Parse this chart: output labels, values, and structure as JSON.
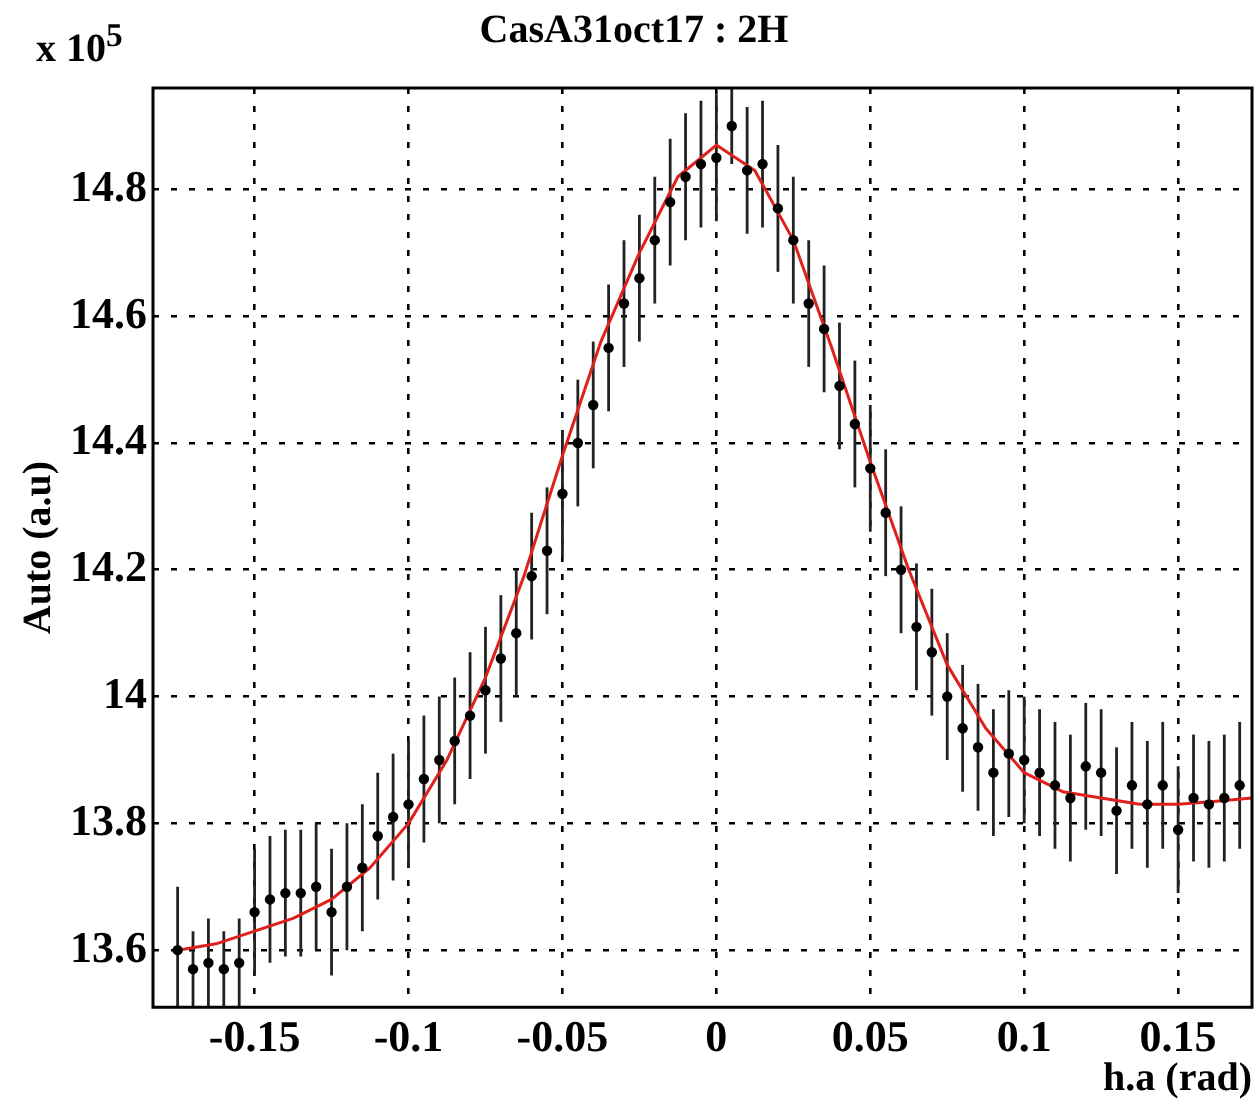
{
  "chart_data": {
    "type": "scatter",
    "title": "CasA31oct17 : 2H",
    "xlabel": "h.a (rad)",
    "ylabel": "Auto (a.u)",
    "annotations": [
      "x 10$^{5}$"
    ],
    "xlim": [
      -0.183,
      0.174
    ],
    "xticks": [
      -0.15,
      -0.1,
      -0.05,
      0,
      0.05,
      0.1,
      0.15
    ],
    "ylim": [
      13.51,
      14.96
    ],
    "yticks": [
      13.6,
      13.8,
      14,
      14.2,
      14.4,
      14.6,
      14.8
    ],
    "grid": true,
    "legend": false,
    "series": [
      {
        "color": "#000000",
        "marker": "circle",
        "x": [
          -0.175,
          -0.17,
          -0.165,
          -0.16,
          -0.155,
          -0.15,
          -0.145,
          -0.14,
          -0.135,
          -0.13,
          -0.125,
          -0.12,
          -0.115,
          -0.11,
          -0.105,
          -0.1,
          -0.095,
          -0.09,
          -0.085,
          -0.08,
          -0.075,
          -0.07,
          -0.065,
          -0.06,
          -0.055,
          -0.05,
          -0.045,
          -0.04,
          -0.035,
          -0.03,
          -0.025,
          -0.02,
          -0.015,
          -0.01,
          -0.005,
          0,
          0.005,
          0.01,
          0.015,
          0.02,
          0.025,
          0.03,
          0.035,
          0.04,
          0.045,
          0.05,
          0.055,
          0.06,
          0.065,
          0.07,
          0.075,
          0.08,
          0.085,
          0.09,
          0.095,
          0.1,
          0.105,
          0.11,
          0.115,
          0.12,
          0.125,
          0.13,
          0.135,
          0.14,
          0.145,
          0.15,
          0.155,
          0.16,
          0.165,
          0.17
        ],
        "values": [
          13.6,
          13.57,
          13.58,
          13.57,
          13.58,
          13.66,
          13.68,
          13.69,
          13.69,
          13.7,
          13.66,
          13.7,
          13.73,
          13.78,
          13.81,
          13.83,
          13.87,
          13.9,
          13.93,
          13.97,
          14.01,
          14.06,
          14.1,
          14.19,
          14.23,
          14.32,
          14.4,
          14.46,
          14.55,
          14.62,
          14.66,
          14.72,
          14.78,
          14.82,
          14.84,
          14.85,
          14.9,
          14.83,
          14.84,
          14.77,
          14.72,
          14.62,
          14.58,
          14.49,
          14.43,
          14.36,
          14.29,
          14.2,
          14.11,
          14.07,
          14,
          13.95,
          13.92,
          13.88,
          13.91,
          13.9,
          13.88,
          13.86,
          13.84,
          13.89,
          13.88,
          13.82,
          13.86,
          13.83,
          13.86,
          13.79,
          13.84,
          13.83,
          13.84,
          13.86
        ],
        "errors": [
          0.1,
          0.06,
          0.07,
          0.06,
          0.07,
          0.1,
          0.1,
          0.1,
          0.1,
          0.1,
          0.1,
          0.1,
          0.1,
          0.1,
          0.1,
          0.1,
          0.1,
          0.1,
          0.1,
          0.1,
          0.1,
          0.1,
          0.1,
          0.1,
          0.1,
          0.1,
          0.1,
          0.1,
          0.1,
          0.1,
          0.1,
          0.1,
          0.1,
          0.1,
          0.1,
          0.1,
          0.06,
          0.1,
          0.1,
          0.1,
          0.1,
          0.1,
          0.1,
          0.1,
          0.1,
          0.1,
          0.1,
          0.1,
          0.1,
          0.1,
          0.1,
          0.1,
          0.1,
          0.1,
          0.1,
          0.1,
          0.1,
          0.1,
          0.1,
          0.1,
          0.1,
          0.1,
          0.1,
          0.1,
          0.1,
          0.1,
          0.1,
          0.1,
          0.1,
          0.1
        ]
      },
      {
        "type": "line",
        "color": "#e0201c",
        "marker": "none",
        "x": [
          -0.175,
          -0.1625,
          -0.15,
          -0.1375,
          -0.125,
          -0.1125,
          -0.1,
          -0.0875,
          -0.075,
          -0.0625,
          -0.05,
          -0.0375,
          -0.025,
          -0.0125,
          0,
          0.0125,
          0.025,
          0.0375,
          0.05,
          0.0625,
          0.075,
          0.0875,
          0.1,
          0.1125,
          0.125,
          0.1375,
          0.15,
          0.1625,
          0.174
        ],
        "values": [
          13.6,
          13.61,
          13.63,
          13.65,
          13.68,
          13.73,
          13.8,
          13.9,
          14.03,
          14.19,
          14.38,
          14.56,
          14.7,
          14.82,
          14.87,
          14.83,
          14.72,
          14.55,
          14.37,
          14.2,
          14.05,
          13.95,
          13.88,
          13.85,
          13.84,
          13.83,
          13.83,
          13.835,
          13.84
        ]
      }
    ]
  }
}
